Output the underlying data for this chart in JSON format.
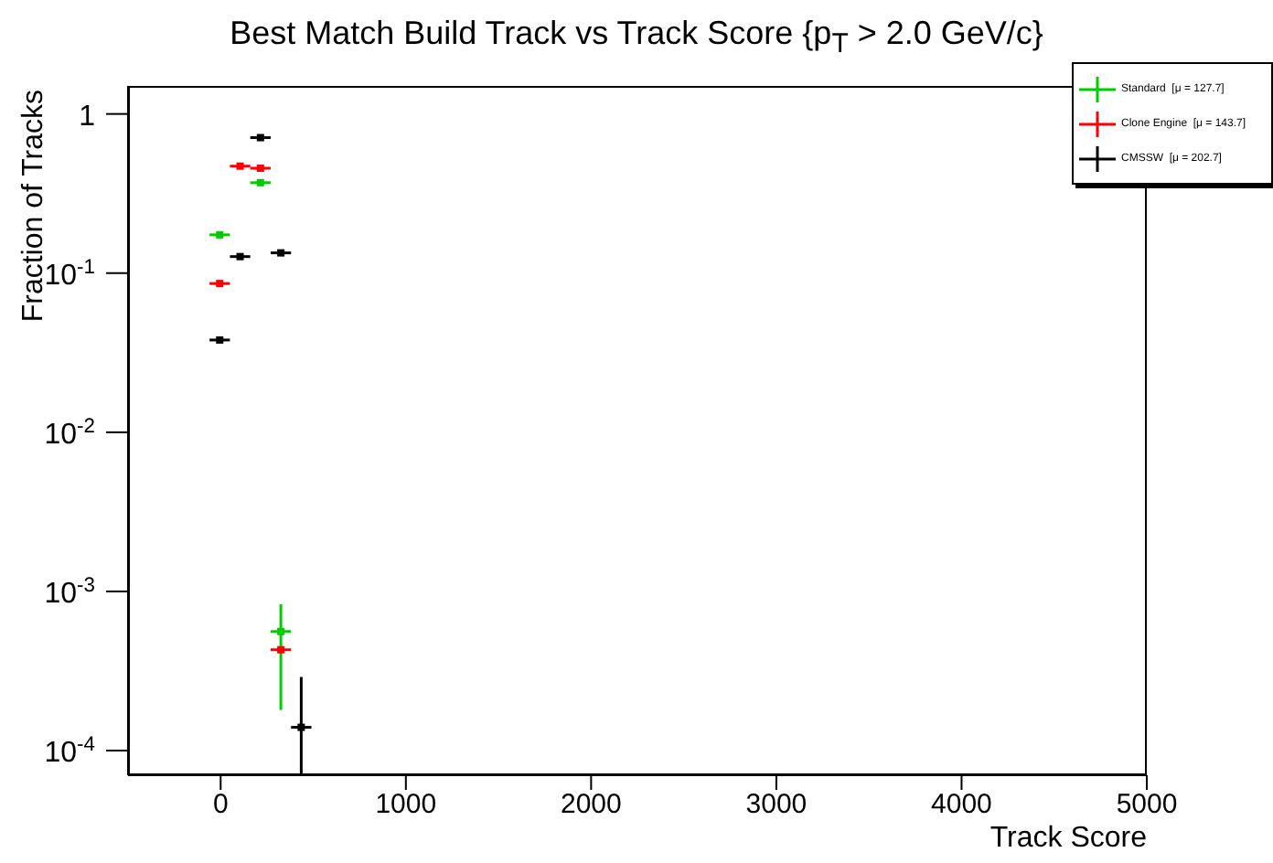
{
  "chart_data": {
    "type": "scatter",
    "title": "Best Match Build Track vs Track Score {p$_{T}$ > 2.0 GeV/c}",
    "xlabel": "Track Score",
    "ylabel": "Fraction of Tracks",
    "x": [
      -5,
      105,
      215,
      325,
      435
    ],
    "series": [
      {
        "name": "Standard  [μ = 127.7]",
        "color": "#00cc00",
        "values": [
          0.174,
          null,
          0.37,
          0.00056,
          null
        ],
        "xerrors": [
          55,
          null,
          55,
          55,
          null
        ],
        "errors": [
          null,
          null,
          null,
          [
            0.00018,
            0.00083
          ],
          null
        ]
      },
      {
        "name": "Clone Engine  [μ = 143.7]",
        "color": "#ff0000",
        "values": [
          0.086,
          0.47,
          0.456,
          0.00043,
          null
        ],
        "xerrors": [
          55,
          55,
          55,
          55,
          null
        ],
        "errors": [
          null,
          null,
          null,
          null,
          null
        ]
      },
      {
        "name": "CMSSW  [μ = 202.7]",
        "color": "#000000",
        "values": [
          0.038,
          0.127,
          0.71,
          0.134,
          0.00014
        ],
        "xerrors": [
          55,
          55,
          55,
          55,
          55
        ],
        "errors": [
          null,
          null,
          null,
          null,
          [
            7e-05,
            0.00029
          ]
        ]
      }
    ],
    "log": "y",
    "xlim": [
      -500,
      5000
    ],
    "xticks": [
      0,
      1000,
      2000,
      3000,
      4000,
      5000
    ],
    "ylim": [
      7e-05,
      1.5
    ],
    "yticks": [
      {
        "value": 0.0001,
        "label": "10$^{-4}$"
      },
      {
        "value": 0.001,
        "label": "10$^{-3}$"
      },
      {
        "value": 0.01,
        "label": "10$^{-2}$"
      },
      {
        "value": 0.1,
        "label": "10$^{-1}$"
      },
      1
    ],
    "legend": "top right",
    "grid": false
  }
}
